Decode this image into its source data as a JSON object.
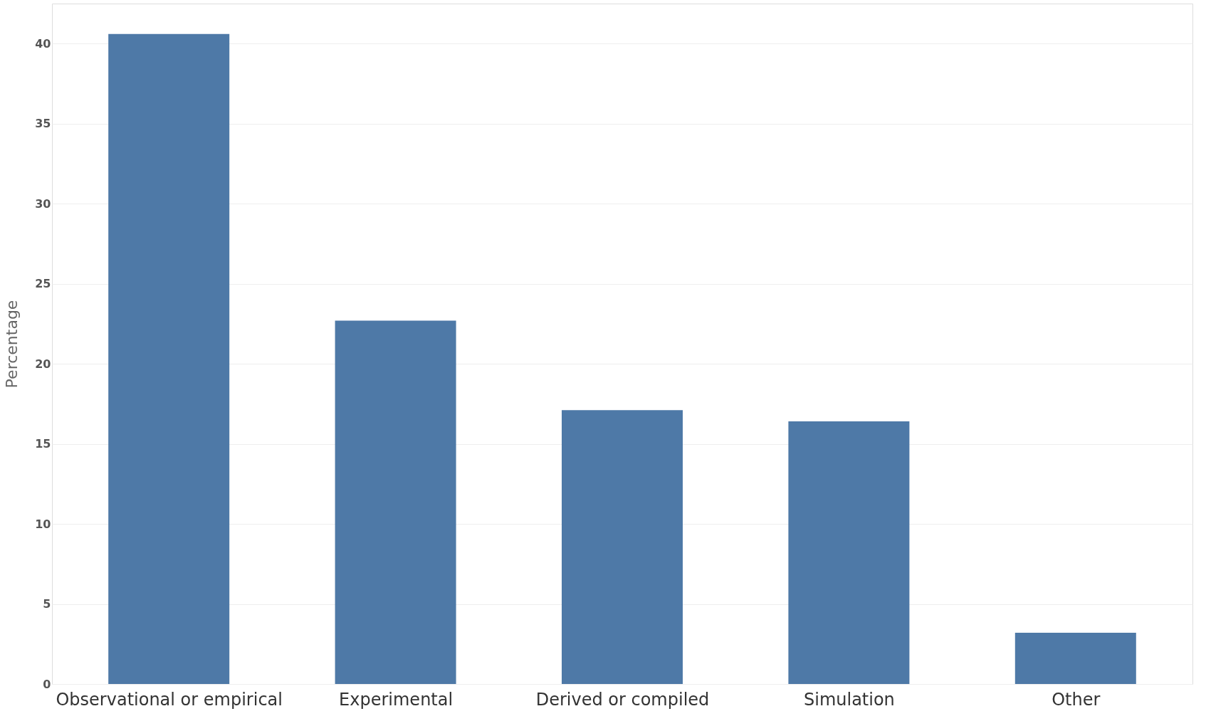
{
  "chart_data": {
    "type": "bar",
    "ylabel": "Percentage",
    "categories": [
      "Observational or empirical",
      "Experimental",
      "Derived or compiled",
      "Simulation",
      "Other"
    ],
    "values": [
      40.6,
      22.7,
      17.1,
      16.4,
      3.2
    ],
    "color": "#4e79a7",
    "ylim": [
      0,
      42.5
    ],
    "yticks": [
      0,
      5,
      10,
      15,
      20,
      25,
      30,
      35,
      40
    ],
    "grid": "y"
  }
}
